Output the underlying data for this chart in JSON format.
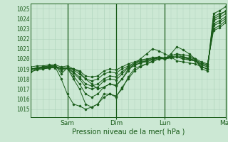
{
  "title": "Pression niveau de la mer( hPa )",
  "ylabel_values": [
    1015,
    1016,
    1017,
    1018,
    1019,
    1020,
    1021,
    1022,
    1023,
    1024,
    1025
  ],
  "xlim": [
    0,
    96
  ],
  "ylim": [
    1014.2,
    1025.5
  ],
  "background_color": "#cce8d4",
  "grid_color_minor": "#b0d4bc",
  "grid_color_major": "#a0c8a8",
  "line_color": "#1a5c1a",
  "x_ticks": [
    18,
    42,
    66,
    96
  ],
  "x_labels": [
    "Sam",
    "Dim",
    "Lun",
    "Mar"
  ],
  "x_vlines": [
    18,
    42,
    66,
    96
  ],
  "series": [
    [
      0,
      1018.7,
      3,
      1019.0,
      6,
      1019.2,
      9,
      1019.3,
      12,
      1019.4,
      15,
      1018.5,
      18,
      1019.1,
      21,
      1018.0,
      24,
      1017.0,
      27,
      1015.5,
      30,
      1015.2,
      33,
      1015.5,
      36,
      1016.2,
      39,
      1016.5,
      42,
      1016.3,
      45,
      1017.0,
      48,
      1018.2,
      51,
      1019.0,
      54,
      1019.3,
      57,
      1019.5,
      60,
      1019.7,
      63,
      1020.0,
      66,
      1020.0,
      69,
      1020.5,
      72,
      1021.2,
      75,
      1020.9,
      78,
      1020.5,
      81,
      1020.0,
      84,
      1019.0,
      87,
      1018.8,
      90,
      1024.0,
      93,
      1024.3,
      96,
      1024.8
    ],
    [
      0,
      1018.9,
      3,
      1019.1,
      6,
      1019.2,
      9,
      1019.3,
      12,
      1019.3,
      15,
      1018.8,
      18,
      1019.1,
      21,
      1018.3,
      24,
      1017.5,
      27,
      1016.5,
      30,
      1016.2,
      33,
      1016.5,
      36,
      1017.2,
      39,
      1017.5,
      42,
      1017.4,
      45,
      1018.0,
      48,
      1019.0,
      51,
      1019.3,
      54,
      1019.6,
      57,
      1019.7,
      60,
      1019.9,
      63,
      1020.1,
      66,
      1020.0,
      69,
      1020.3,
      72,
      1020.5,
      75,
      1020.2,
      78,
      1020.0,
      81,
      1019.8,
      84,
      1019.2,
      87,
      1019.0,
      90,
      1023.8,
      93,
      1024.1,
      96,
      1024.5
    ],
    [
      0,
      1019.0,
      3,
      1019.1,
      6,
      1019.2,
      9,
      1019.2,
      12,
      1019.3,
      15,
      1019.0,
      18,
      1019.1,
      21,
      1018.6,
      24,
      1018.0,
      27,
      1017.2,
      30,
      1017.0,
      33,
      1017.2,
      36,
      1017.8,
      39,
      1018.0,
      42,
      1017.9,
      45,
      1018.5,
      48,
      1019.1,
      51,
      1019.4,
      54,
      1019.6,
      57,
      1019.8,
      60,
      1020.0,
      63,
      1020.1,
      66,
      1020.0,
      69,
      1020.1,
      72,
      1020.2,
      75,
      1020.0,
      78,
      1019.9,
      81,
      1019.8,
      84,
      1019.4,
      87,
      1019.2,
      90,
      1023.5,
      93,
      1023.8,
      96,
      1024.2
    ],
    [
      0,
      1019.0,
      3,
      1019.1,
      6,
      1019.1,
      9,
      1019.2,
      12,
      1019.2,
      15,
      1019.0,
      18,
      1019.1,
      21,
      1018.7,
      24,
      1018.2,
      27,
      1017.5,
      30,
      1017.3,
      33,
      1017.5,
      36,
      1018.0,
      39,
      1018.3,
      42,
      1018.2,
      45,
      1018.7,
      48,
      1019.2,
      51,
      1019.5,
      54,
      1019.7,
      57,
      1019.8,
      60,
      1020.0,
      63,
      1020.1,
      66,
      1020.0,
      69,
      1020.1,
      72,
      1020.2,
      75,
      1020.0,
      78,
      1019.9,
      81,
      1019.8,
      84,
      1019.5,
      87,
      1019.3,
      90,
      1023.3,
      93,
      1023.6,
      96,
      1024.0
    ],
    [
      0,
      1019.0,
      3,
      1019.0,
      6,
      1019.1,
      9,
      1019.1,
      12,
      1019.2,
      15,
      1019.1,
      18,
      1019.1,
      21,
      1018.9,
      24,
      1018.5,
      27,
      1018.0,
      30,
      1017.8,
      33,
      1018.0,
      36,
      1018.5,
      39,
      1018.7,
      42,
      1018.6,
      45,
      1019.0,
      48,
      1019.3,
      51,
      1019.6,
      54,
      1019.8,
      57,
      1019.9,
      60,
      1020.1,
      63,
      1020.1,
      66,
      1020.1,
      69,
      1020.1,
      72,
      1020.2,
      75,
      1020.1,
      78,
      1020.0,
      81,
      1019.9,
      84,
      1019.6,
      87,
      1019.4,
      90,
      1023.0,
      93,
      1023.3,
      96,
      1023.8
    ],
    [
      0,
      1019.0,
      3,
      1019.0,
      6,
      1019.0,
      9,
      1019.1,
      12,
      1019.1,
      15,
      1019.1,
      18,
      1019.1,
      21,
      1019.0,
      24,
      1018.8,
      27,
      1018.3,
      30,
      1018.2,
      33,
      1018.3,
      36,
      1018.8,
      39,
      1019.0,
      42,
      1018.9,
      45,
      1019.2,
      48,
      1019.5,
      51,
      1019.7,
      54,
      1019.9,
      57,
      1020.0,
      60,
      1020.1,
      63,
      1020.2,
      66,
      1020.1,
      69,
      1020.2,
      72,
      1020.3,
      75,
      1020.2,
      78,
      1020.1,
      81,
      1020.0,
      84,
      1019.7,
      87,
      1019.5,
      90,
      1022.8,
      93,
      1023.1,
      96,
      1023.6
    ],
    [
      0,
      1018.7,
      3,
      1018.9,
      6,
      1019.0,
      9,
      1019.1,
      12,
      1019.2,
      15,
      1018.0,
      18,
      1016.5,
      21,
      1015.5,
      24,
      1015.3,
      27,
      1015.0,
      30,
      1015.2,
      33,
      1015.5,
      36,
      1016.5,
      39,
      1016.5,
      42,
      1016.2,
      45,
      1017.2,
      48,
      1018.0,
      51,
      1018.8,
      54,
      1019.2,
      57,
      1019.5,
      60,
      1019.8,
      63,
      1020.0,
      66,
      1020.1,
      69,
      1020.3,
      72,
      1020.5,
      75,
      1020.4,
      78,
      1020.3,
      81,
      1020.0,
      84,
      1019.2,
      87,
      1019.0,
      90,
      1024.2,
      93,
      1024.5,
      96,
      1024.7
    ],
    [
      0,
      1019.2,
      3,
      1019.3,
      6,
      1019.3,
      9,
      1019.4,
      12,
      1019.4,
      15,
      1019.2,
      18,
      1019.3,
      21,
      1019.0,
      24,
      1018.7,
      27,
      1018.0,
      30,
      1017.5,
      33,
      1017.0,
      36,
      1017.2,
      39,
      1017.5,
      42,
      1017.3,
      45,
      1018.0,
      48,
      1018.8,
      51,
      1019.5,
      54,
      1020.0,
      57,
      1020.5,
      60,
      1021.0,
      63,
      1020.8,
      66,
      1020.5,
      69,
      1020.2,
      72,
      1019.8,
      75,
      1019.7,
      78,
      1019.6,
      81,
      1019.5,
      84,
      1019.2,
      87,
      1019.0,
      90,
      1024.5,
      93,
      1024.8,
      96,
      1025.2
    ]
  ]
}
